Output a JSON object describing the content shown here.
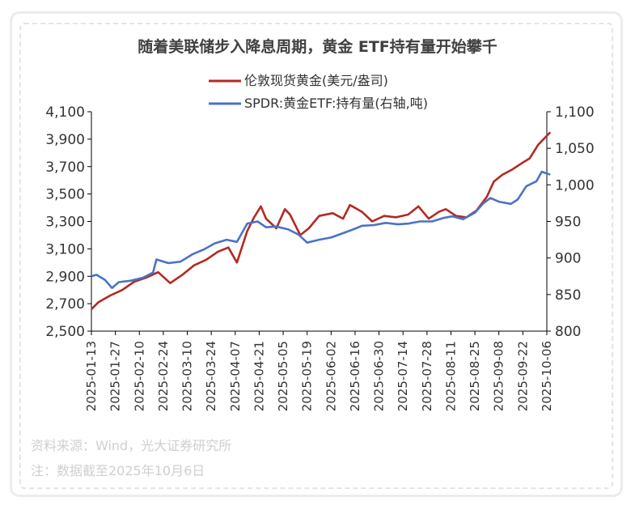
{
  "chart_data": {
    "type": "line",
    "title": "随着美联储步入降息周期，黄金 ETF持有量开始攀千",
    "x_tick_labels": [
      "2025-01-13",
      "2025-01-27",
      "2025-02-10",
      "2025-02-24",
      "2025-03-10",
      "2025-03-24",
      "2025-04-07",
      "2025-04-21",
      "2025-05-05",
      "2025-05-19",
      "2025-06-02",
      "2025-06-16",
      "2025-06-30",
      "2025-07-14",
      "2025-07-28",
      "2025-08-11",
      "2025-08-25",
      "2025-09-08",
      "2025-09-22",
      "2025-10-06"
    ],
    "left_axis": {
      "ylim": [
        2500,
        4100
      ],
      "ticks": [
        "2,500",
        "2,700",
        "2,900",
        "3,100",
        "3,300",
        "3,500",
        "3,700",
        "3,900",
        "4,100"
      ]
    },
    "right_axis": {
      "ylim": [
        800,
        1100
      ],
      "ticks": [
        "800",
        "850",
        "900",
        "950",
        "1,000",
        "1,050",
        "1,100"
      ]
    },
    "legend_position": "top-center",
    "series": [
      {
        "name": "伦敦现货黄金(美元/盎司)",
        "axis": "left",
        "color": "#b22a22",
        "points": [
          [
            "2025-01-13",
            2660
          ],
          [
            "2025-01-17",
            2710
          ],
          [
            "2025-01-24",
            2760
          ],
          [
            "2025-01-31",
            2800
          ],
          [
            "2025-02-07",
            2860
          ],
          [
            "2025-02-14",
            2890
          ],
          [
            "2025-02-21",
            2930
          ],
          [
            "2025-02-28",
            2850
          ],
          [
            "2025-03-07",
            2910
          ],
          [
            "2025-03-14",
            2980
          ],
          [
            "2025-03-21",
            3020
          ],
          [
            "2025-03-28",
            3080
          ],
          [
            "2025-04-03",
            3110
          ],
          [
            "2025-04-08",
            3000
          ],
          [
            "2025-04-14",
            3230
          ],
          [
            "2025-04-18",
            3330
          ],
          [
            "2025-04-22",
            3410
          ],
          [
            "2025-04-25",
            3320
          ],
          [
            "2025-05-01",
            3250
          ],
          [
            "2025-05-06",
            3390
          ],
          [
            "2025-05-09",
            3350
          ],
          [
            "2025-05-15",
            3200
          ],
          [
            "2025-05-20",
            3250
          ],
          [
            "2025-05-26",
            3340
          ],
          [
            "2025-06-03",
            3360
          ],
          [
            "2025-06-09",
            3320
          ],
          [
            "2025-06-13",
            3420
          ],
          [
            "2025-06-20",
            3370
          ],
          [
            "2025-06-26",
            3300
          ],
          [
            "2025-07-03",
            3340
          ],
          [
            "2025-07-10",
            3330
          ],
          [
            "2025-07-17",
            3350
          ],
          [
            "2025-07-23",
            3410
          ],
          [
            "2025-07-29",
            3320
          ],
          [
            "2025-08-04",
            3370
          ],
          [
            "2025-08-08",
            3390
          ],
          [
            "2025-08-14",
            3340
          ],
          [
            "2025-08-20",
            3330
          ],
          [
            "2025-08-26",
            3380
          ],
          [
            "2025-09-01",
            3480
          ],
          [
            "2025-09-05",
            3590
          ],
          [
            "2025-09-10",
            3640
          ],
          [
            "2025-09-16",
            3680
          ],
          [
            "2025-09-22",
            3730
          ],
          [
            "2025-09-26",
            3760
          ],
          [
            "2025-10-01",
            3860
          ],
          [
            "2025-10-08",
            3950
          ]
        ]
      },
      {
        "name": "SPDR:黄金ETF:持有量(右轴,吨)",
        "axis": "right",
        "color": "#4a73c4",
        "points": [
          [
            "2025-01-13",
            875
          ],
          [
            "2025-01-16",
            877
          ],
          [
            "2025-01-21",
            870
          ],
          [
            "2025-01-25",
            859
          ],
          [
            "2025-01-29",
            867
          ],
          [
            "2025-02-05",
            869
          ],
          [
            "2025-02-12",
            873
          ],
          [
            "2025-02-18",
            880
          ],
          [
            "2025-02-20",
            898
          ],
          [
            "2025-02-27",
            893
          ],
          [
            "2025-03-06",
            895
          ],
          [
            "2025-03-13",
            905
          ],
          [
            "2025-03-20",
            912
          ],
          [
            "2025-03-26",
            920
          ],
          [
            "2025-04-02",
            925
          ],
          [
            "2025-04-08",
            922
          ],
          [
            "2025-04-14",
            947
          ],
          [
            "2025-04-20",
            950
          ],
          [
            "2025-04-25",
            942
          ],
          [
            "2025-05-01",
            943
          ],
          [
            "2025-05-08",
            939
          ],
          [
            "2025-05-14",
            932
          ],
          [
            "2025-05-19",
            921
          ],
          [
            "2025-05-26",
            925
          ],
          [
            "2025-06-02",
            928
          ],
          [
            "2025-06-09",
            934
          ],
          [
            "2025-06-16",
            940
          ],
          [
            "2025-06-20",
            944
          ],
          [
            "2025-06-27",
            945
          ],
          [
            "2025-07-04",
            948
          ],
          [
            "2025-07-11",
            946
          ],
          [
            "2025-07-17",
            947
          ],
          [
            "2025-07-24",
            950
          ],
          [
            "2025-07-31",
            950
          ],
          [
            "2025-08-07",
            955
          ],
          [
            "2025-08-12",
            957
          ],
          [
            "2025-08-18",
            953
          ],
          [
            "2025-08-25",
            962
          ],
          [
            "2025-08-30",
            975
          ],
          [
            "2025-09-03",
            982
          ],
          [
            "2025-09-08",
            977
          ],
          [
            "2025-09-15",
            974
          ],
          [
            "2025-09-19",
            980
          ],
          [
            "2025-09-24",
            998
          ],
          [
            "2025-09-30",
            1005
          ],
          [
            "2025-10-03",
            1018
          ],
          [
            "2025-10-08",
            1014
          ]
        ]
      }
    ]
  },
  "footer": {
    "source": "资料来源：Wind，光大证券研究所",
    "note": "注：数据截至2025年10月6日"
  }
}
